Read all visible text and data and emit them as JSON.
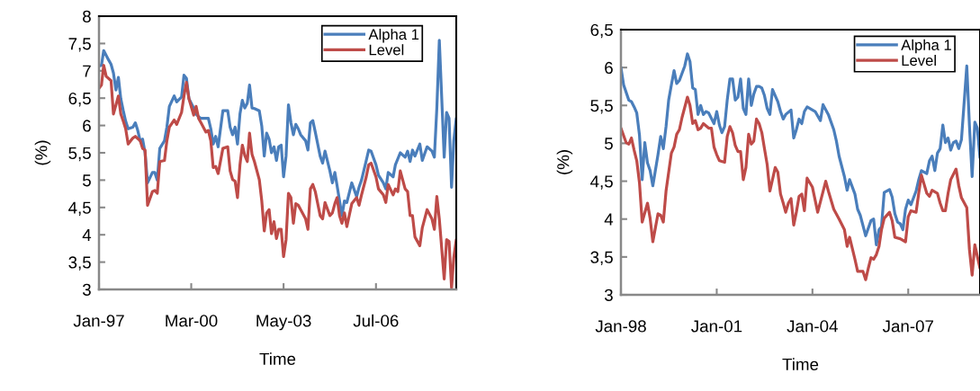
{
  "chart_data": [
    {
      "type": "line",
      "xlabel": "Time",
      "ylabel": "(%)",
      "legend": "top right",
      "xlim": [
        "1997-01",
        "2009-04"
      ],
      "xticks": [
        {
          "value": "1997-01",
          "label": "Jan-97"
        },
        {
          "value": "2000-03",
          "label": "Mar-00"
        },
        {
          "value": "2003-05",
          "label": "May-03"
        },
        {
          "value": "2006-07",
          "label": "Jul-06"
        }
      ],
      "ylim": [
        3,
        8
      ],
      "yticks": [
        3,
        {
          "value": 3.5,
          "label": "3,5"
        },
        4,
        {
          "value": 4.5,
          "label": "4,5"
        },
        5,
        {
          "value": 5.5,
          "label": "5,5"
        },
        6,
        {
          "value": 6.5,
          "label": "6,5"
        },
        7,
        {
          "value": 7.5,
          "label": "7,5"
        },
        8
      ],
      "series": [
        {
          "name": "Alpha 1",
          "color": "#4a7ebb",
          "x": [
            "1997-01",
            "1997-02",
            "1997-03",
            "1997-05",
            "1997-06",
            "1997-07",
            "1997-08",
            "1997-09",
            "1997-10",
            "1997-11",
            "1997-12",
            "1998-01",
            "1998-03",
            "1998-04",
            "1998-05",
            "1998-06",
            "1998-07",
            "1998-08",
            "1998-09",
            "1998-11",
            "1998-12",
            "1999-01",
            "1999-02",
            "1999-04",
            "1999-05",
            "1999-06",
            "1999-08",
            "1999-09",
            "1999-11",
            "1999-12",
            "2000-01",
            "2000-02",
            "2000-04",
            "2000-05",
            "2000-06",
            "2000-07",
            "2000-09",
            "2000-10",
            "2000-11",
            "2000-12",
            "2001-01",
            "2001-02",
            "2001-04",
            "2001-06",
            "2001-07",
            "2001-08",
            "2001-09",
            "2001-10",
            "2001-11",
            "2001-12",
            "2002-01",
            "2002-02",
            "2002-03",
            "2002-04",
            "2002-05",
            "2002-07",
            "2002-08",
            "2002-09",
            "2002-10",
            "2002-11",
            "2002-12",
            "2003-01",
            "2003-02",
            "2003-03",
            "2003-04",
            "2003-05",
            "2003-06",
            "2003-07",
            "2003-08",
            "2003-09",
            "2003-10",
            "2003-11",
            "2003-12",
            "2004-02",
            "2004-03",
            "2004-04",
            "2004-05",
            "2004-06",
            "2004-08",
            "2004-09",
            "2004-10",
            "2004-12",
            "2005-01",
            "2005-02",
            "2005-03",
            "2005-04",
            "2005-05",
            "2005-06",
            "2005-07",
            "2005-09",
            "2005-11",
            "2005-12",
            "2006-01",
            "2006-03",
            "2006-04",
            "2006-05",
            "2006-07",
            "2006-08",
            "2006-10",
            "2006-11",
            "2006-12",
            "2007-02",
            "2007-03",
            "2007-05",
            "2007-07",
            "2007-08",
            "2007-09",
            "2007-10",
            "2007-11",
            "2008-01",
            "2008-02",
            "2008-04",
            "2008-06",
            "2008-07",
            "2008-08",
            "2008-09",
            "2008-11",
            "2008-12",
            "2009-01",
            "2009-02",
            "2009-03",
            "2009-04"
          ],
          "values": [
            7.09,
            7.1,
            7.37,
            7.2,
            7.12,
            6.96,
            6.65,
            6.88,
            6.49,
            6.27,
            6.08,
            5.94,
            5.97,
            6.05,
            5.91,
            5.72,
            5.75,
            5.5,
            4.95,
            5.14,
            5.14,
            5.0,
            5.58,
            5.72,
            5.97,
            6.35,
            6.54,
            6.43,
            6.52,
            6.92,
            6.86,
            6.49,
            6.32,
            6.21,
            6.16,
            6.13,
            6.13,
            6.13,
            5.94,
            5.66,
            5.8,
            5.61,
            6.27,
            6.27,
            5.97,
            5.83,
            5.97,
            5.66,
            6.21,
            6.46,
            6.32,
            6.41,
            6.74,
            6.32,
            6.31,
            6.27,
            5.99,
            5.44,
            5.86,
            5.75,
            5.5,
            5.61,
            5.36,
            5.61,
            5.64,
            5.06,
            5.44,
            6.38,
            6.05,
            5.83,
            6.02,
            5.94,
            5.83,
            5.72,
            5.55,
            6.05,
            6.09,
            5.88,
            5.44,
            5.31,
            5.53,
            5.17,
            4.95,
            5.14,
            4.9,
            4.62,
            4.35,
            4.62,
            4.59,
            4.95,
            4.7,
            4.87,
            5.0,
            5.36,
            5.55,
            5.53,
            5.28,
            5.09,
            4.95,
            4.84,
            5.14,
            5.06,
            5.28,
            5.5,
            5.42,
            5.53,
            5.34,
            5.55,
            5.44,
            5.66,
            5.36,
            5.61,
            5.53,
            5.42,
            6.32,
            7.56,
            5.42,
            6.24,
            6.13,
            4.87,
            5.72,
            6.13
          ]
        },
        {
          "name": "Level",
          "color": "#be4b48",
          "x": [
            "1997-01",
            "1997-02",
            "1997-03",
            "1997-04",
            "1997-06",
            "1997-07",
            "1997-09",
            "1997-10",
            "1997-11",
            "1997-12",
            "1998-01",
            "1998-03",
            "1998-04",
            "1998-06",
            "1998-07",
            "1998-08",
            "1998-09",
            "1998-11",
            "1998-12",
            "1999-01",
            "1999-02",
            "1999-04",
            "1999-05",
            "1999-06",
            "1999-08",
            "1999-09",
            "1999-11",
            "1999-12",
            "2000-01",
            "2000-02",
            "2000-04",
            "2000-05",
            "2000-06",
            "2000-07",
            "2000-09",
            "2000-10",
            "2000-11",
            "2000-12",
            "2001-01",
            "2001-02",
            "2001-04",
            "2001-06",
            "2001-07",
            "2001-08",
            "2001-09",
            "2001-10",
            "2001-11",
            "2001-12",
            "2002-01",
            "2002-02",
            "2002-03",
            "2002-04",
            "2002-05",
            "2002-07",
            "2002-08",
            "2002-09",
            "2002-10",
            "2002-11",
            "2002-12",
            "2003-01",
            "2003-02",
            "2003-03",
            "2003-04",
            "2003-05",
            "2003-06",
            "2003-07",
            "2003-08",
            "2003-09",
            "2003-10",
            "2003-11",
            "2003-12",
            "2004-02",
            "2004-03",
            "2004-04",
            "2004-05",
            "2004-06",
            "2004-08",
            "2004-09",
            "2004-10",
            "2004-12",
            "2005-01",
            "2005-02",
            "2005-03",
            "2005-04",
            "2005-05",
            "2005-06",
            "2005-07",
            "2005-09",
            "2005-11",
            "2005-12",
            "2006-01",
            "2006-03",
            "2006-04",
            "2006-05",
            "2006-07",
            "2006-08",
            "2006-10",
            "2006-11",
            "2006-12",
            "2007-02",
            "2007-03",
            "2007-04",
            "2007-05",
            "2007-07",
            "2007-08",
            "2007-09",
            "2007-10",
            "2007-11",
            "2008-01",
            "2008-02",
            "2008-04",
            "2008-06",
            "2008-07",
            "2008-08",
            "2008-09",
            "2008-11",
            "2008-12",
            "2009-01",
            "2009-02",
            "2009-03",
            "2009-04"
          ],
          "values": [
            6.68,
            6.74,
            7.1,
            6.9,
            6.82,
            6.21,
            6.54,
            6.21,
            6.08,
            5.94,
            5.66,
            5.77,
            5.8,
            5.72,
            5.58,
            5.55,
            4.54,
            4.79,
            4.81,
            4.76,
            5.34,
            5.36,
            5.72,
            5.97,
            6.1,
            6.02,
            6.24,
            6.54,
            6.79,
            6.49,
            6.19,
            6.35,
            6.13,
            6.05,
            5.88,
            5.91,
            5.72,
            5.23,
            5.25,
            5.12,
            5.58,
            5.61,
            5.17,
            5.01,
            4.98,
            4.68,
            5.28,
            5.64,
            5.45,
            5.34,
            5.86,
            5.47,
            5.34,
            5.01,
            4.62,
            4.07,
            4.4,
            4.46,
            4.02,
            4.24,
            3.93,
            4.1,
            4.1,
            3.6,
            3.91,
            4.76,
            4.68,
            4.21,
            4.57,
            4.54,
            4.46,
            4.29,
            4.1,
            4.84,
            4.92,
            4.79,
            4.35,
            4.29,
            4.59,
            4.35,
            4.4,
            4.57,
            4.68,
            4.35,
            4.21,
            4.4,
            4.15,
            4.57,
            4.68,
            4.54,
            4.73,
            5.06,
            5.28,
            5.31,
            5.06,
            4.84,
            4.73,
            4.59,
            4.92,
            4.73,
            4.84,
            4.79,
            5.17,
            4.84,
            4.79,
            4.35,
            4.35,
            3.96,
            3.8,
            4.13,
            4.46,
            4.29,
            4.1,
            4.7,
            4.29,
            3.19,
            3.91,
            3.88,
            3.03,
            3.58,
            3.91
          ]
        }
      ]
    },
    {
      "type": "line",
      "xlabel": "Time",
      "ylabel": "(%)",
      "legend": "top right",
      "xlim": [
        "1998-01",
        "2009-04"
      ],
      "xticks": [
        {
          "value": "1998-01",
          "label": "Jan-98"
        },
        {
          "value": "2001-01",
          "label": "Jan-01"
        },
        {
          "value": "2004-01",
          "label": "Jan-04"
        },
        {
          "value": "2007-01",
          "label": "Jan-07"
        }
      ],
      "ylim": [
        3,
        6.5
      ],
      "yticks": [
        3,
        {
          "value": 3.5,
          "label": "3,5"
        },
        4,
        {
          "value": 4.5,
          "label": "4,5"
        },
        5,
        {
          "value": 5.5,
          "label": "5,5"
        },
        6,
        {
          "value": 6.5,
          "label": "6,5"
        }
      ],
      "series": [
        {
          "name": "Alpha 1",
          "color": "#4a7ebb",
          "x": [
            "1998-01",
            "1998-02",
            "1998-04",
            "1998-05",
            "1998-06",
            "1998-07",
            "1998-08",
            "1998-09",
            "1998-10",
            "1998-11",
            "1998-12",
            "1999-01",
            "1999-03",
            "1999-04",
            "1999-05",
            "1999-06",
            "1999-07",
            "1999-08",
            "1999-09",
            "1999-10",
            "1999-11",
            "2000-01",
            "2000-02",
            "2000-03",
            "2000-04",
            "2000-05",
            "2000-06",
            "2000-07",
            "2000-08",
            "2000-09",
            "2000-10",
            "2000-12",
            "2001-01",
            "2001-02",
            "2001-03",
            "2001-04",
            "2001-05",
            "2001-06",
            "2001-07",
            "2001-08",
            "2001-09",
            "2001-10",
            "2001-11",
            "2001-12",
            "2002-01",
            "2002-02",
            "2002-03",
            "2002-04",
            "2002-05",
            "2002-06",
            "2002-07",
            "2002-08",
            "2002-09",
            "2002-10",
            "2002-12",
            "2003-01",
            "2003-02",
            "2003-03",
            "2003-05",
            "2003-06",
            "2003-07",
            "2003-08",
            "2003-09",
            "2003-10",
            "2003-11",
            "2004-01",
            "2004-02",
            "2004-04",
            "2004-05",
            "2004-07",
            "2004-09",
            "2004-10",
            "2004-11",
            "2005-01",
            "2005-02",
            "2005-03",
            "2005-05",
            "2005-06",
            "2005-07",
            "2005-09",
            "2005-11",
            "2005-12",
            "2006-01",
            "2006-02",
            "2006-03",
            "2006-04",
            "2006-06",
            "2006-07",
            "2006-08",
            "2006-09",
            "2006-10",
            "2006-11",
            "2006-12",
            "2007-01",
            "2007-02",
            "2007-04",
            "2007-05",
            "2007-06",
            "2007-08",
            "2007-09",
            "2007-10",
            "2007-11",
            "2007-12",
            "2008-01",
            "2008-02",
            "2008-03",
            "2008-04",
            "2008-05",
            "2008-06",
            "2008-07",
            "2008-08",
            "2008-09",
            "2008-11",
            "2008-12",
            "2009-01",
            "2009-02",
            "2009-03",
            "2009-04"
          ],
          "values": [
            6.0,
            5.77,
            5.57,
            5.55,
            5.48,
            5.4,
            5.11,
            4.52,
            5.01,
            4.74,
            4.64,
            4.44,
            4.85,
            5.09,
            4.93,
            5.22,
            5.57,
            5.77,
            5.96,
            5.79,
            5.83,
            6.02,
            6.18,
            6.08,
            5.73,
            5.71,
            5.38,
            5.5,
            5.38,
            5.42,
            5.4,
            5.26,
            5.42,
            5.24,
            5.14,
            5.22,
            5.57,
            5.85,
            5.85,
            5.57,
            5.61,
            5.85,
            5.46,
            5.38,
            5.85,
            5.5,
            5.65,
            5.75,
            5.75,
            5.73,
            5.63,
            5.46,
            5.38,
            5.71,
            5.55,
            5.42,
            5.32,
            5.38,
            5.44,
            5.07,
            5.18,
            5.32,
            5.26,
            5.42,
            5.48,
            5.44,
            5.42,
            5.3,
            5.51,
            5.38,
            5.18,
            5.03,
            4.83,
            4.56,
            4.38,
            4.52,
            4.33,
            4.13,
            4.05,
            3.78,
            3.98,
            4.0,
            3.66,
            3.86,
            3.9,
            4.35,
            4.39,
            4.29,
            4.07,
            3.96,
            3.94,
            3.86,
            4.13,
            4.25,
            4.19,
            4.37,
            4.52,
            4.64,
            4.6,
            4.77,
            4.83,
            4.64,
            4.87,
            4.93,
            5.24,
            5.01,
            5.07,
            4.91,
            5.01,
            5.03,
            4.93,
            5.05,
            6.02,
            5.24,
            4.56,
            5.28,
            5.2,
            4.81
          ]
        },
        {
          "name": "Level",
          "color": "#be4b48",
          "x": [
            "1998-01",
            "1998-03",
            "1998-04",
            "1998-05",
            "1998-06",
            "1998-07",
            "1998-08",
            "1998-09",
            "1998-11",
            "1998-12",
            "1999-01",
            "1999-03",
            "1999-04",
            "1999-05",
            "1999-06",
            "1999-08",
            "1999-09",
            "1999-10",
            "1999-11",
            "1999-12",
            "2000-02",
            "2000-03",
            "2000-04",
            "2000-05",
            "2000-06",
            "2000-07",
            "2000-08",
            "2000-10",
            "2000-11",
            "2000-12",
            "2001-01",
            "2001-02",
            "2001-04",
            "2001-05",
            "2001-06",
            "2001-07",
            "2001-08",
            "2001-09",
            "2001-10",
            "2001-11",
            "2001-12",
            "2002-01",
            "2002-02",
            "2002-03",
            "2002-04",
            "2002-05",
            "2002-06",
            "2002-07",
            "2002-08",
            "2002-09",
            "2002-11",
            "2002-12",
            "2003-01",
            "2003-02",
            "2003-03",
            "2003-04",
            "2003-05",
            "2003-06",
            "2003-07",
            "2003-08",
            "2003-09",
            "2003-10",
            "2003-11",
            "2004-01",
            "2004-02",
            "2004-03",
            "2004-06",
            "2004-07",
            "2004-09",
            "2004-11",
            "2005-01",
            "2005-02",
            "2005-03",
            "2005-05",
            "2005-06",
            "2005-08",
            "2005-09",
            "2005-10",
            "2005-11",
            "2005-12",
            "2006-01",
            "2006-02",
            "2006-03",
            "2006-04",
            "2006-06",
            "2006-07",
            "2006-08",
            "2006-10",
            "2006-12",
            "2007-01",
            "2007-02",
            "2007-04",
            "2007-05",
            "2007-06",
            "2007-08",
            "2007-09",
            "2007-10",
            "2007-12",
            "2008-01",
            "2008-02",
            "2008-03",
            "2008-04",
            "2008-05",
            "2008-07",
            "2008-08",
            "2008-09",
            "2008-11",
            "2008-12",
            "2009-01",
            "2009-02",
            "2009-03",
            "2009-04"
          ],
          "values": [
            5.2,
            5.01,
            4.99,
            5.07,
            4.91,
            4.77,
            4.48,
            3.96,
            4.21,
            4.01,
            3.7,
            4.07,
            4.05,
            3.96,
            4.37,
            4.87,
            4.95,
            5.12,
            5.18,
            5.34,
            5.61,
            5.5,
            5.26,
            5.3,
            5.18,
            5.2,
            5.26,
            5.2,
            5.2,
            4.95,
            4.85,
            4.77,
            4.75,
            5.09,
            5.22,
            5.14,
            4.97,
            4.89,
            4.89,
            4.52,
            4.68,
            5.12,
            4.99,
            5.03,
            5.32,
            5.26,
            5.14,
            4.93,
            4.72,
            4.37,
            4.68,
            4.62,
            4.33,
            4.21,
            4.09,
            4.21,
            4.27,
            3.92,
            4.09,
            4.3,
            4.33,
            4.11,
            4.54,
            4.42,
            4.25,
            4.09,
            4.5,
            4.37,
            4.13,
            4.0,
            3.86,
            3.64,
            3.76,
            3.47,
            3.31,
            3.31,
            3.2,
            3.35,
            3.49,
            3.47,
            3.53,
            3.64,
            3.86,
            4.01,
            4.09,
            3.98,
            3.76,
            3.74,
            3.7,
            4.03,
            4.11,
            4.09,
            4.34,
            4.58,
            4.34,
            4.3,
            4.38,
            4.34,
            4.21,
            4.11,
            4.11,
            4.34,
            4.52,
            4.66,
            4.44,
            4.28,
            4.15,
            3.6,
            3.26,
            3.66,
            3.51,
            3.35
          ]
        }
      ]
    }
  ]
}
